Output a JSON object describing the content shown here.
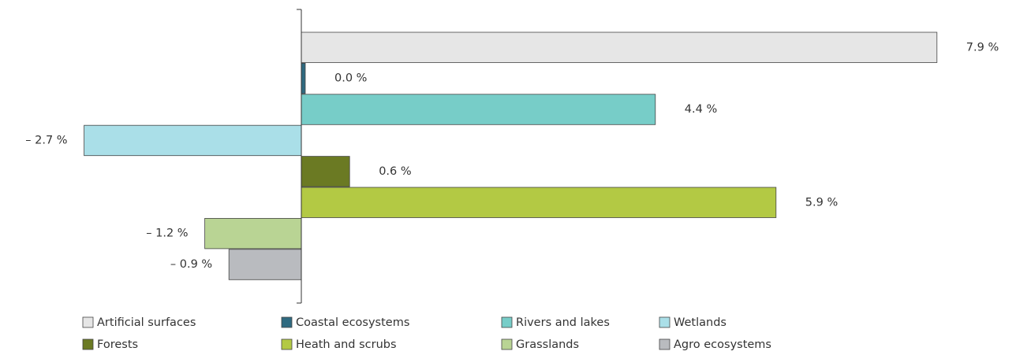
{
  "chart_data": {
    "type": "hbar",
    "xlim": [
      -3.5,
      8.5
    ],
    "series": [
      {
        "name": "Artificial surfaces",
        "color": "#e6e6e6",
        "values": [
          7.9
        ],
        "value_labels": [
          "7.9 %"
        ]
      },
      {
        "name": "Coastal ecosystems",
        "color": "#2f6a80",
        "values": [
          0.0
        ],
        "value_labels": [
          "0.0 %"
        ]
      },
      {
        "name": "Rivers and lakes",
        "color": "#77cdc8",
        "values": [
          4.4
        ],
        "value_labels": [
          "4.4 %"
        ]
      },
      {
        "name": "Wetlands",
        "color": "#aadfe8",
        "values": [
          -2.7
        ],
        "value_labels": [
          "– 2.7 %"
        ]
      },
      {
        "name": "Forests",
        "color": "#6b7a23",
        "values": [
          0.6
        ],
        "value_labels": [
          "0.6 %"
        ]
      },
      {
        "name": "Heath and scrubs",
        "color": "#b3c944",
        "values": [
          5.9
        ],
        "value_labels": [
          "5.9 %"
        ]
      },
      {
        "name": "Grasslands",
        "color": "#b9d494",
        "values": [
          -1.2
        ],
        "value_labels": [
          "– 1.2 %"
        ]
      },
      {
        "name": "Agro ecosystems",
        "color": "#b9bbbf",
        "values": [
          -0.9
        ],
        "value_labels": [
          "– 0.9 %"
        ]
      }
    ]
  }
}
